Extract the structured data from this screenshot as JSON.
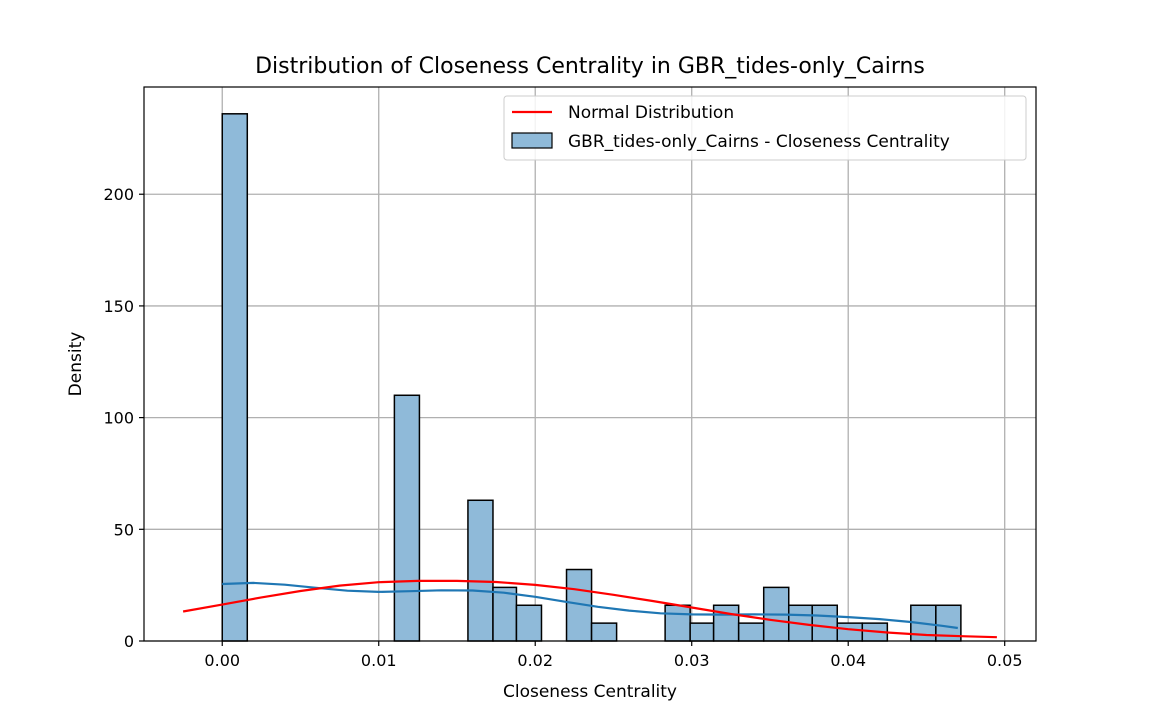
{
  "chart_data": {
    "type": "bar",
    "title": "Distribution of Closeness Centrality in GBR_tides-only_Cairns",
    "xlabel": "Closeness Centrality",
    "ylabel": "Density",
    "xlim": [
      -0.005,
      0.052
    ],
    "ylim": [
      0,
      248
    ],
    "xticks": [
      0.0,
      0.01,
      0.02,
      0.03,
      0.04,
      0.05
    ],
    "xtick_labels": [
      "0.00",
      "0.01",
      "0.02",
      "0.03",
      "0.04",
      "0.05"
    ],
    "yticks": [
      0,
      50,
      100,
      150,
      200
    ],
    "ytick_labels": [
      "0",
      "50",
      "100",
      "150",
      "200"
    ],
    "grid": true,
    "legend_position": "top-right",
    "colors": {
      "hist_fill": "#8fbad9",
      "hist_edge": "#000000",
      "kde_line": "#1f77b4",
      "normal_line": "#ff0000",
      "grid": "#b0b0b0"
    },
    "histogram": {
      "name": "GBR_tides-only_Cairns - Closeness Centrality",
      "bins": [
        {
          "x0": 0.0,
          "x1": 0.0016,
          "value": 236
        },
        {
          "x0": 0.011,
          "x1": 0.0126,
          "value": 110
        },
        {
          "x0": 0.0157,
          "x1": 0.0173,
          "value": 63
        },
        {
          "x0": 0.0173,
          "x1": 0.0188,
          "value": 24
        },
        {
          "x0": 0.0188,
          "x1": 0.0204,
          "value": 16
        },
        {
          "x0": 0.022,
          "x1": 0.0236,
          "value": 32
        },
        {
          "x0": 0.0236,
          "x1": 0.0252,
          "value": 8
        },
        {
          "x0": 0.0283,
          "x1": 0.0299,
          "value": 16
        },
        {
          "x0": 0.0299,
          "x1": 0.0314,
          "value": 8
        },
        {
          "x0": 0.0314,
          "x1": 0.033,
          "value": 16
        },
        {
          "x0": 0.033,
          "x1": 0.0346,
          "value": 8
        },
        {
          "x0": 0.0346,
          "x1": 0.0362,
          "value": 24
        },
        {
          "x0": 0.0362,
          "x1": 0.0377,
          "value": 16
        },
        {
          "x0": 0.0377,
          "x1": 0.0393,
          "value": 16
        },
        {
          "x0": 0.0393,
          "x1": 0.0409,
          "value": 8
        },
        {
          "x0": 0.0409,
          "x1": 0.0425,
          "value": 8
        },
        {
          "x0": 0.044,
          "x1": 0.0456,
          "value": 16
        },
        {
          "x0": 0.0456,
          "x1": 0.0472,
          "value": 16
        }
      ]
    },
    "kde": {
      "x": [
        0.0,
        0.002,
        0.004,
        0.006,
        0.008,
        0.01,
        0.012,
        0.014,
        0.016,
        0.018,
        0.02,
        0.022,
        0.024,
        0.026,
        0.028,
        0.03,
        0.032,
        0.034,
        0.036,
        0.038,
        0.04,
        0.042,
        0.044,
        0.046,
        0.047
      ],
      "y": [
        25.5,
        26.0,
        25.2,
        23.8,
        22.5,
        22.0,
        22.3,
        22.7,
        22.6,
        21.6,
        19.8,
        17.5,
        15.3,
        13.6,
        12.4,
        11.9,
        11.8,
        11.9,
        11.8,
        11.4,
        10.7,
        9.8,
        8.5,
        6.8,
        5.8
      ]
    },
    "normal": {
      "name": "Normal Distribution",
      "x": [
        -0.0025,
        0.0,
        0.0025,
        0.005,
        0.0075,
        0.01,
        0.0125,
        0.015,
        0.0175,
        0.02,
        0.0225,
        0.025,
        0.0275,
        0.03,
        0.0325,
        0.035,
        0.0375,
        0.04,
        0.0425,
        0.045,
        0.0475,
        0.0495
      ],
      "y": [
        13.2,
        16.3,
        19.5,
        22.4,
        24.8,
        26.3,
        26.9,
        26.9,
        26.4,
        25.1,
        23.2,
        20.7,
        17.9,
        15.0,
        12.1,
        9.5,
        7.2,
        5.3,
        3.8,
        2.7,
        2.1,
        1.7
      ]
    }
  }
}
